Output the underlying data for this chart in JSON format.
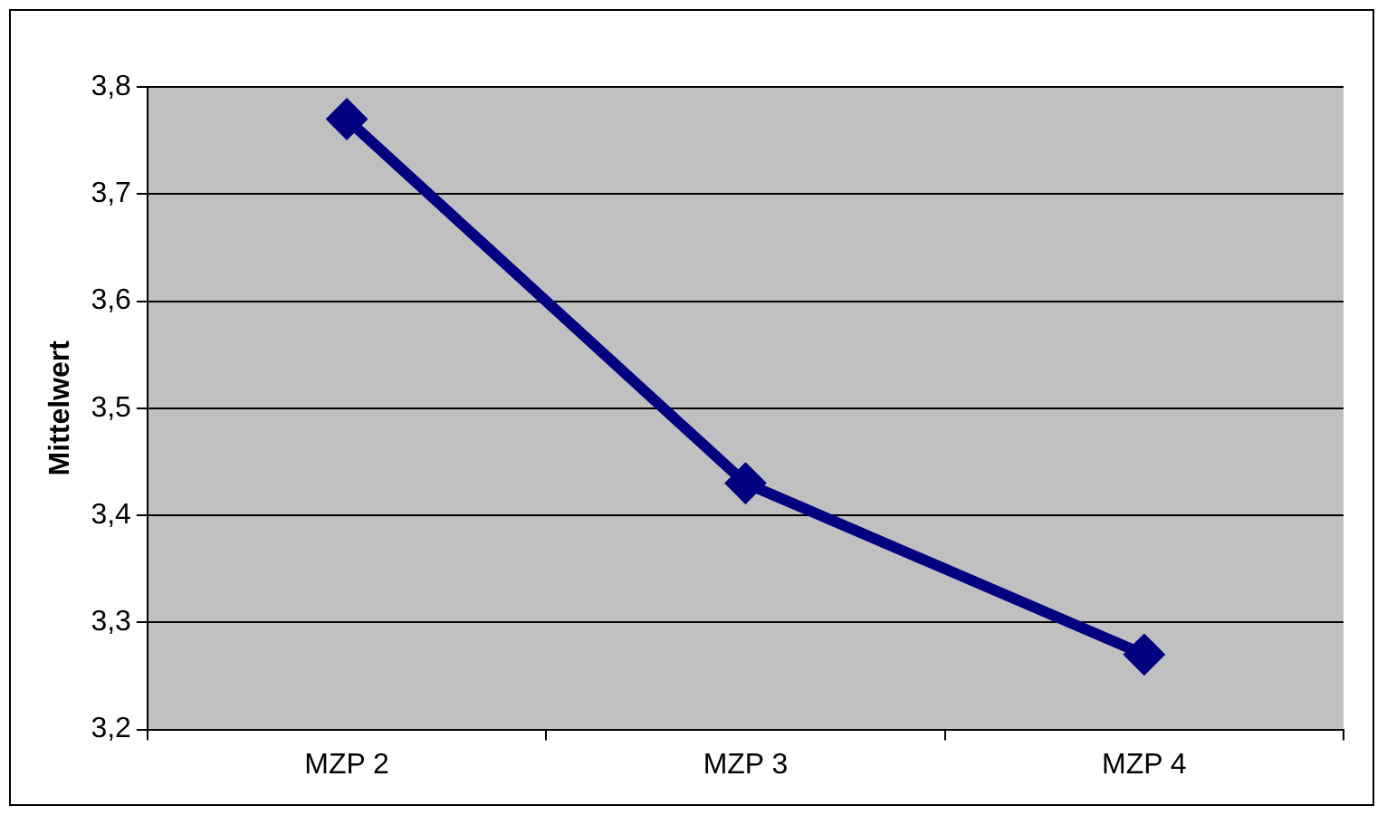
{
  "chart_data": {
    "type": "line",
    "ylabel": "Mittelwert",
    "categories": [
      "MZP 2",
      "MZP 3",
      "MZP 4"
    ],
    "series": [
      {
        "color": "#000080",
        "values": [
          3.77,
          3.43,
          3.27
        ]
      }
    ],
    "ylim": [
      3.2,
      3.8
    ],
    "yticks": [
      {
        "value": 3.2,
        "label": "3,2"
      },
      {
        "value": 3.3,
        "label": "3,3"
      },
      {
        "value": 3.4,
        "label": "3,4"
      },
      {
        "value": 3.5,
        "label": "3,5"
      },
      {
        "value": 3.6,
        "label": "3,6"
      },
      {
        "value": 3.7,
        "label": "3,7"
      },
      {
        "value": 3.8,
        "label": "3,8"
      }
    ],
    "grid": "y",
    "legend": false,
    "marker": "diamond",
    "line_style": "solid"
  }
}
